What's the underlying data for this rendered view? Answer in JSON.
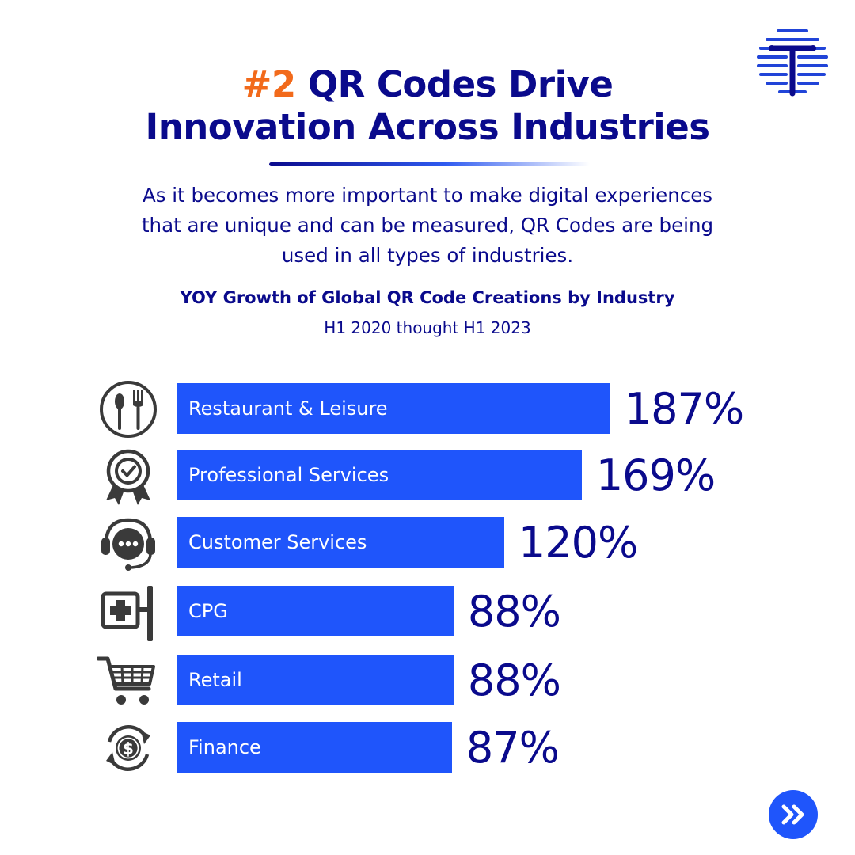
{
  "headline": {
    "number": "#2",
    "line1_rest": " QR Codes Drive",
    "line2": "Innovation Across Industries"
  },
  "description": {
    "line1": "As it becomes more important to make digital experiences",
    "line2": "that are unique and can be measured, QR Codes are being",
    "line3": "used in all types of industries."
  },
  "colors": {
    "accent": "#f26a1b",
    "navy": "#0a0a8c",
    "bar": "#1f55fb",
    "icon": "#3a3a3a"
  },
  "logo": {
    "icon": "circuit-t-logo-icon"
  },
  "next_button": {
    "icon": "double-chevron-right-icon"
  },
  "chart_data": {
    "type": "bar",
    "orientation": "horizontal",
    "title": "YOY Growth of Global QR Code Creations by Industry",
    "subtitle": "H1 2020 thought H1 2023",
    "categories": [
      "Restaurant & Leisure",
      "Professional Services",
      "Customer Services",
      "CPG",
      "Retail",
      "Finance"
    ],
    "values": [
      187,
      169,
      120,
      88,
      88,
      87
    ],
    "value_labels": [
      "187%",
      "169%",
      "120%",
      "88%",
      "88%",
      "87%"
    ],
    "icons": [
      "plate-fork-spoon-icon",
      "award-badge-icon",
      "headset-support-icon",
      "medical-sign-icon",
      "shopping-cart-icon",
      "dollar-cycle-icon"
    ],
    "unit": "%",
    "grid": false,
    "legend": "none"
  }
}
